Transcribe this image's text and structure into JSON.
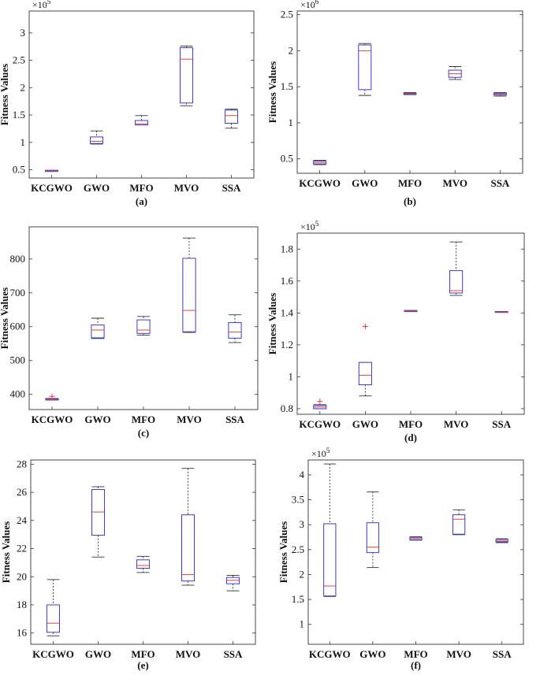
{
  "figure": {
    "colors": {
      "box": "#3b3bd6",
      "median": "#e8413a",
      "whisker": "#333333",
      "outlier": "#e8413a",
      "frame": "#333333"
    }
  },
  "chart_data": [
    {
      "type": "box",
      "caption": "(a)",
      "ylabel": "Fitness Values",
      "exponent": "5",
      "ylim": [
        0.35,
        3.4
      ],
      "yticks": [
        0.5,
        1,
        1.5,
        2,
        2.5,
        3
      ],
      "ytick_labels": [
        "0.5",
        "1",
        "1.5",
        "2",
        "2.5",
        "3"
      ],
      "categories": [
        "KCGWO",
        "GWO",
        "MFO",
        "MVO",
        "SSA"
      ],
      "boxes": [
        {
          "min": 0.47,
          "q1": 0.47,
          "median": 0.48,
          "q3": 0.49,
          "max": 0.49,
          "outliers": []
        },
        {
          "min": 0.97,
          "q1": 0.98,
          "median": 1.02,
          "q3": 1.1,
          "max": 1.21,
          "outliers": []
        },
        {
          "min": 1.32,
          "q1": 1.32,
          "median": 1.34,
          "q3": 1.4,
          "max": 1.49,
          "outliers": []
        },
        {
          "min": 1.67,
          "q1": 1.72,
          "median": 2.52,
          "q3": 2.73,
          "max": 2.76,
          "outliers": []
        },
        {
          "min": 1.26,
          "q1": 1.35,
          "median": 1.49,
          "q3": 1.59,
          "max": 1.61,
          "outliers": []
        }
      ]
    },
    {
      "type": "box",
      "caption": "(b)",
      "ylabel": "Fitness Values",
      "exponent": "6",
      "ylim": [
        0.3,
        2.55
      ],
      "yticks": [
        0.5,
        1,
        1.5,
        2,
        2.5
      ],
      "ytick_labels": [
        "0.5",
        "1",
        "1.5",
        "2",
        "2.5"
      ],
      "categories": [
        "KCGWO",
        "GWO",
        "MFO",
        "MVO",
        "SSA"
      ],
      "boxes": [
        {
          "min": 0.42,
          "q1": 0.43,
          "median": 0.45,
          "q3": 0.47,
          "max": 0.48,
          "outliers": []
        },
        {
          "min": 1.38,
          "q1": 1.46,
          "median": 2.0,
          "q3": 2.08,
          "max": 2.1,
          "outliers": []
        },
        {
          "min": 1.39,
          "q1": 1.395,
          "median": 1.4,
          "q3": 1.41,
          "max": 1.42,
          "outliers": []
        },
        {
          "min": 1.6,
          "q1": 1.63,
          "median": 1.68,
          "q3": 1.73,
          "max": 1.78,
          "outliers": []
        },
        {
          "min": 1.37,
          "q1": 1.385,
          "median": 1.395,
          "q3": 1.41,
          "max": 1.42,
          "outliers": []
        }
      ]
    },
    {
      "type": "box",
      "caption": "(c)",
      "ylabel": "Fitness Values",
      "exponent": "",
      "ylim": [
        355,
        895
      ],
      "yticks": [
        400,
        500,
        600,
        700,
        800
      ],
      "ytick_labels": [
        "400",
        "500",
        "600",
        "700",
        "800"
      ],
      "categories": [
        "KCGWO",
        "GWO",
        "MFO",
        "MVO",
        "SSA"
      ],
      "boxes": [
        {
          "min": 383,
          "q1": 384,
          "median": 385,
          "q3": 387,
          "max": 388,
          "outliers": [
            394
          ]
        },
        {
          "min": 565,
          "q1": 567,
          "median": 590,
          "q3": 605,
          "max": 625,
          "outliers": []
        },
        {
          "min": 575,
          "q1": 580,
          "median": 590,
          "q3": 620,
          "max": 630,
          "outliers": []
        },
        {
          "min": 583,
          "q1": 585,
          "median": 648,
          "q3": 802,
          "max": 862,
          "outliers": []
        },
        {
          "min": 553,
          "q1": 566,
          "median": 584,
          "q3": 612,
          "max": 635,
          "outliers": []
        }
      ]
    },
    {
      "type": "box",
      "caption": "(d)",
      "ylabel": "Fitness Values",
      "exponent": "5",
      "ylim": [
        0.765,
        1.9
      ],
      "yticks": [
        0.8,
        1,
        1.2,
        1.4,
        1.6,
        1.8
      ],
      "ytick_labels": [
        "0.8",
        "1",
        "1.2",
        "1.4",
        "1.6",
        "1.8"
      ],
      "categories": [
        "KCGWO",
        "GWO",
        "MFO",
        "MVO",
        "SSA"
      ],
      "boxes": [
        {
          "min": 0.8,
          "q1": 0.8,
          "median": 0.81,
          "q3": 0.82,
          "max": 0.825,
          "outliers": [
            0.845
          ]
        },
        {
          "min": 0.88,
          "q1": 0.95,
          "median": 1.01,
          "q3": 1.09,
          "max": 1.09,
          "outliers": [
            1.315
          ]
        },
        {
          "min": 1.408,
          "q1": 1.41,
          "median": 1.412,
          "q3": 1.414,
          "max": 1.416,
          "outliers": []
        },
        {
          "min": 1.51,
          "q1": 1.525,
          "median": 1.54,
          "q3": 1.665,
          "max": 1.845,
          "outliers": []
        },
        {
          "min": 1.404,
          "q1": 1.405,
          "median": 1.406,
          "q3": 1.408,
          "max": 1.409,
          "outliers": []
        }
      ]
    },
    {
      "type": "box",
      "caption": "(e)",
      "ylabel": "Fitness Values",
      "exponent": "",
      "ylim": [
        15.2,
        28.3
      ],
      "yticks": [
        16,
        18,
        20,
        22,
        24,
        26,
        28
      ],
      "ytick_labels": [
        "16",
        "18",
        "20",
        "22",
        "24",
        "26",
        "28"
      ],
      "categories": [
        "KCGWO",
        "GWO",
        "MFO",
        "MVO",
        "SSA"
      ],
      "boxes": [
        {
          "min": 15.8,
          "q1": 16.05,
          "median": 16.7,
          "q3": 18.0,
          "max": 19.8,
          "outliers": []
        },
        {
          "min": 21.4,
          "q1": 22.95,
          "median": 24.6,
          "q3": 26.2,
          "max": 26.4,
          "outliers": []
        },
        {
          "min": 20.3,
          "q1": 20.6,
          "median": 20.8,
          "q3": 21.2,
          "max": 21.45,
          "outliers": []
        },
        {
          "min": 19.4,
          "q1": 19.7,
          "median": 20.15,
          "q3": 24.4,
          "max": 27.7,
          "outliers": []
        },
        {
          "min": 19.0,
          "q1": 19.5,
          "median": 19.75,
          "q3": 19.95,
          "max": 20.1,
          "outliers": []
        }
      ]
    },
    {
      "type": "box",
      "caption": "(f)",
      "ylabel": "Fitness Values",
      "exponent": "5",
      "ylim": [
        0.6,
        4.3
      ],
      "yticks": [
        1,
        1.5,
        2,
        2.5,
        3,
        3.5,
        4
      ],
      "ytick_labels": [
        "1",
        "1.5",
        "2",
        "2.5",
        "3",
        "3.5",
        "4"
      ],
      "categories": [
        "KCGWO",
        "GWO",
        "MFO",
        "MVO",
        "SSA"
      ],
      "boxes": [
        {
          "min": 1.56,
          "q1": 1.57,
          "median": 1.77,
          "q3": 3.02,
          "max": 4.22,
          "outliers": []
        },
        {
          "min": 2.14,
          "q1": 2.44,
          "median": 2.55,
          "q3": 3.04,
          "max": 3.66,
          "outliers": []
        },
        {
          "min": 2.69,
          "q1": 2.7,
          "median": 2.73,
          "q3": 2.75,
          "max": 2.76,
          "outliers": []
        },
        {
          "min": 2.8,
          "q1": 2.81,
          "median": 3.11,
          "q3": 3.2,
          "max": 3.3,
          "outliers": []
        },
        {
          "min": 2.64,
          "q1": 2.655,
          "median": 2.67,
          "q3": 2.7,
          "max": 2.72,
          "outliers": []
        }
      ]
    }
  ]
}
